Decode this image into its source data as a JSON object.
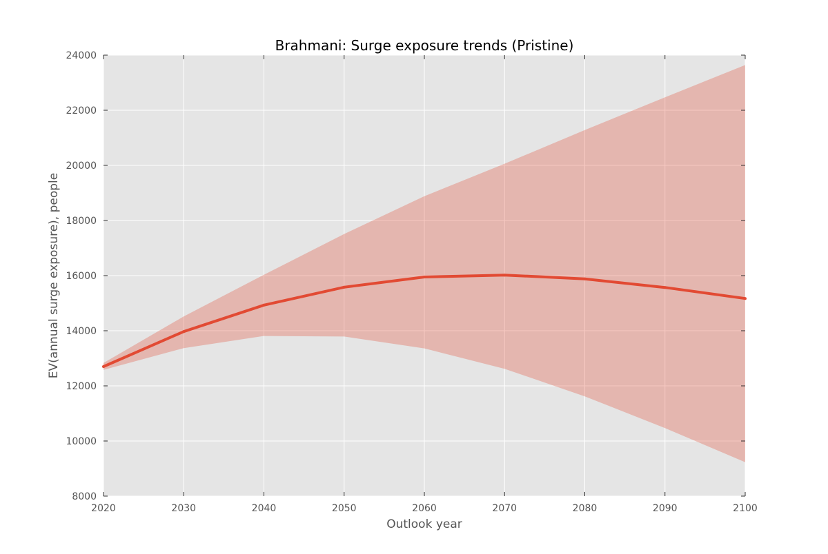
{
  "chart_data": {
    "type": "line",
    "title": "Brahmani: Surge exposure trends (Pristine)",
    "xlabel": "Outlook year",
    "ylabel": "EV(annual surge exposure), people",
    "xlim": [
      2020,
      2100
    ],
    "ylim": [
      8000,
      24000
    ],
    "x_ticks": [
      2020,
      2030,
      2040,
      2050,
      2060,
      2070,
      2080,
      2090,
      2100
    ],
    "y_ticks": [
      8000,
      10000,
      12000,
      14000,
      16000,
      18000,
      20000,
      22000,
      24000
    ],
    "grid": true,
    "x": [
      2020,
      2030,
      2040,
      2050,
      2060,
      2070,
      2080,
      2090,
      2100
    ],
    "series": [
      {
        "values": [
          12700,
          13970,
          14930,
          15580,
          15950,
          16020,
          15880,
          15570,
          15170
        ],
        "color": "#e24a33"
      }
    ],
    "band": {
      "lower": [
        12580,
        13370,
        13810,
        13790,
        13360,
        12620,
        11620,
        10470,
        9230
      ],
      "upper": [
        12830,
        14520,
        16030,
        17510,
        18880,
        20060,
        21280,
        22470,
        23640
      ],
      "color": "#e24a33"
    },
    "colors": {
      "plot_background": "#e5e5e5",
      "grid": "#ffffff",
      "line": "#e24a33",
      "band": "#e24a33"
    }
  }
}
